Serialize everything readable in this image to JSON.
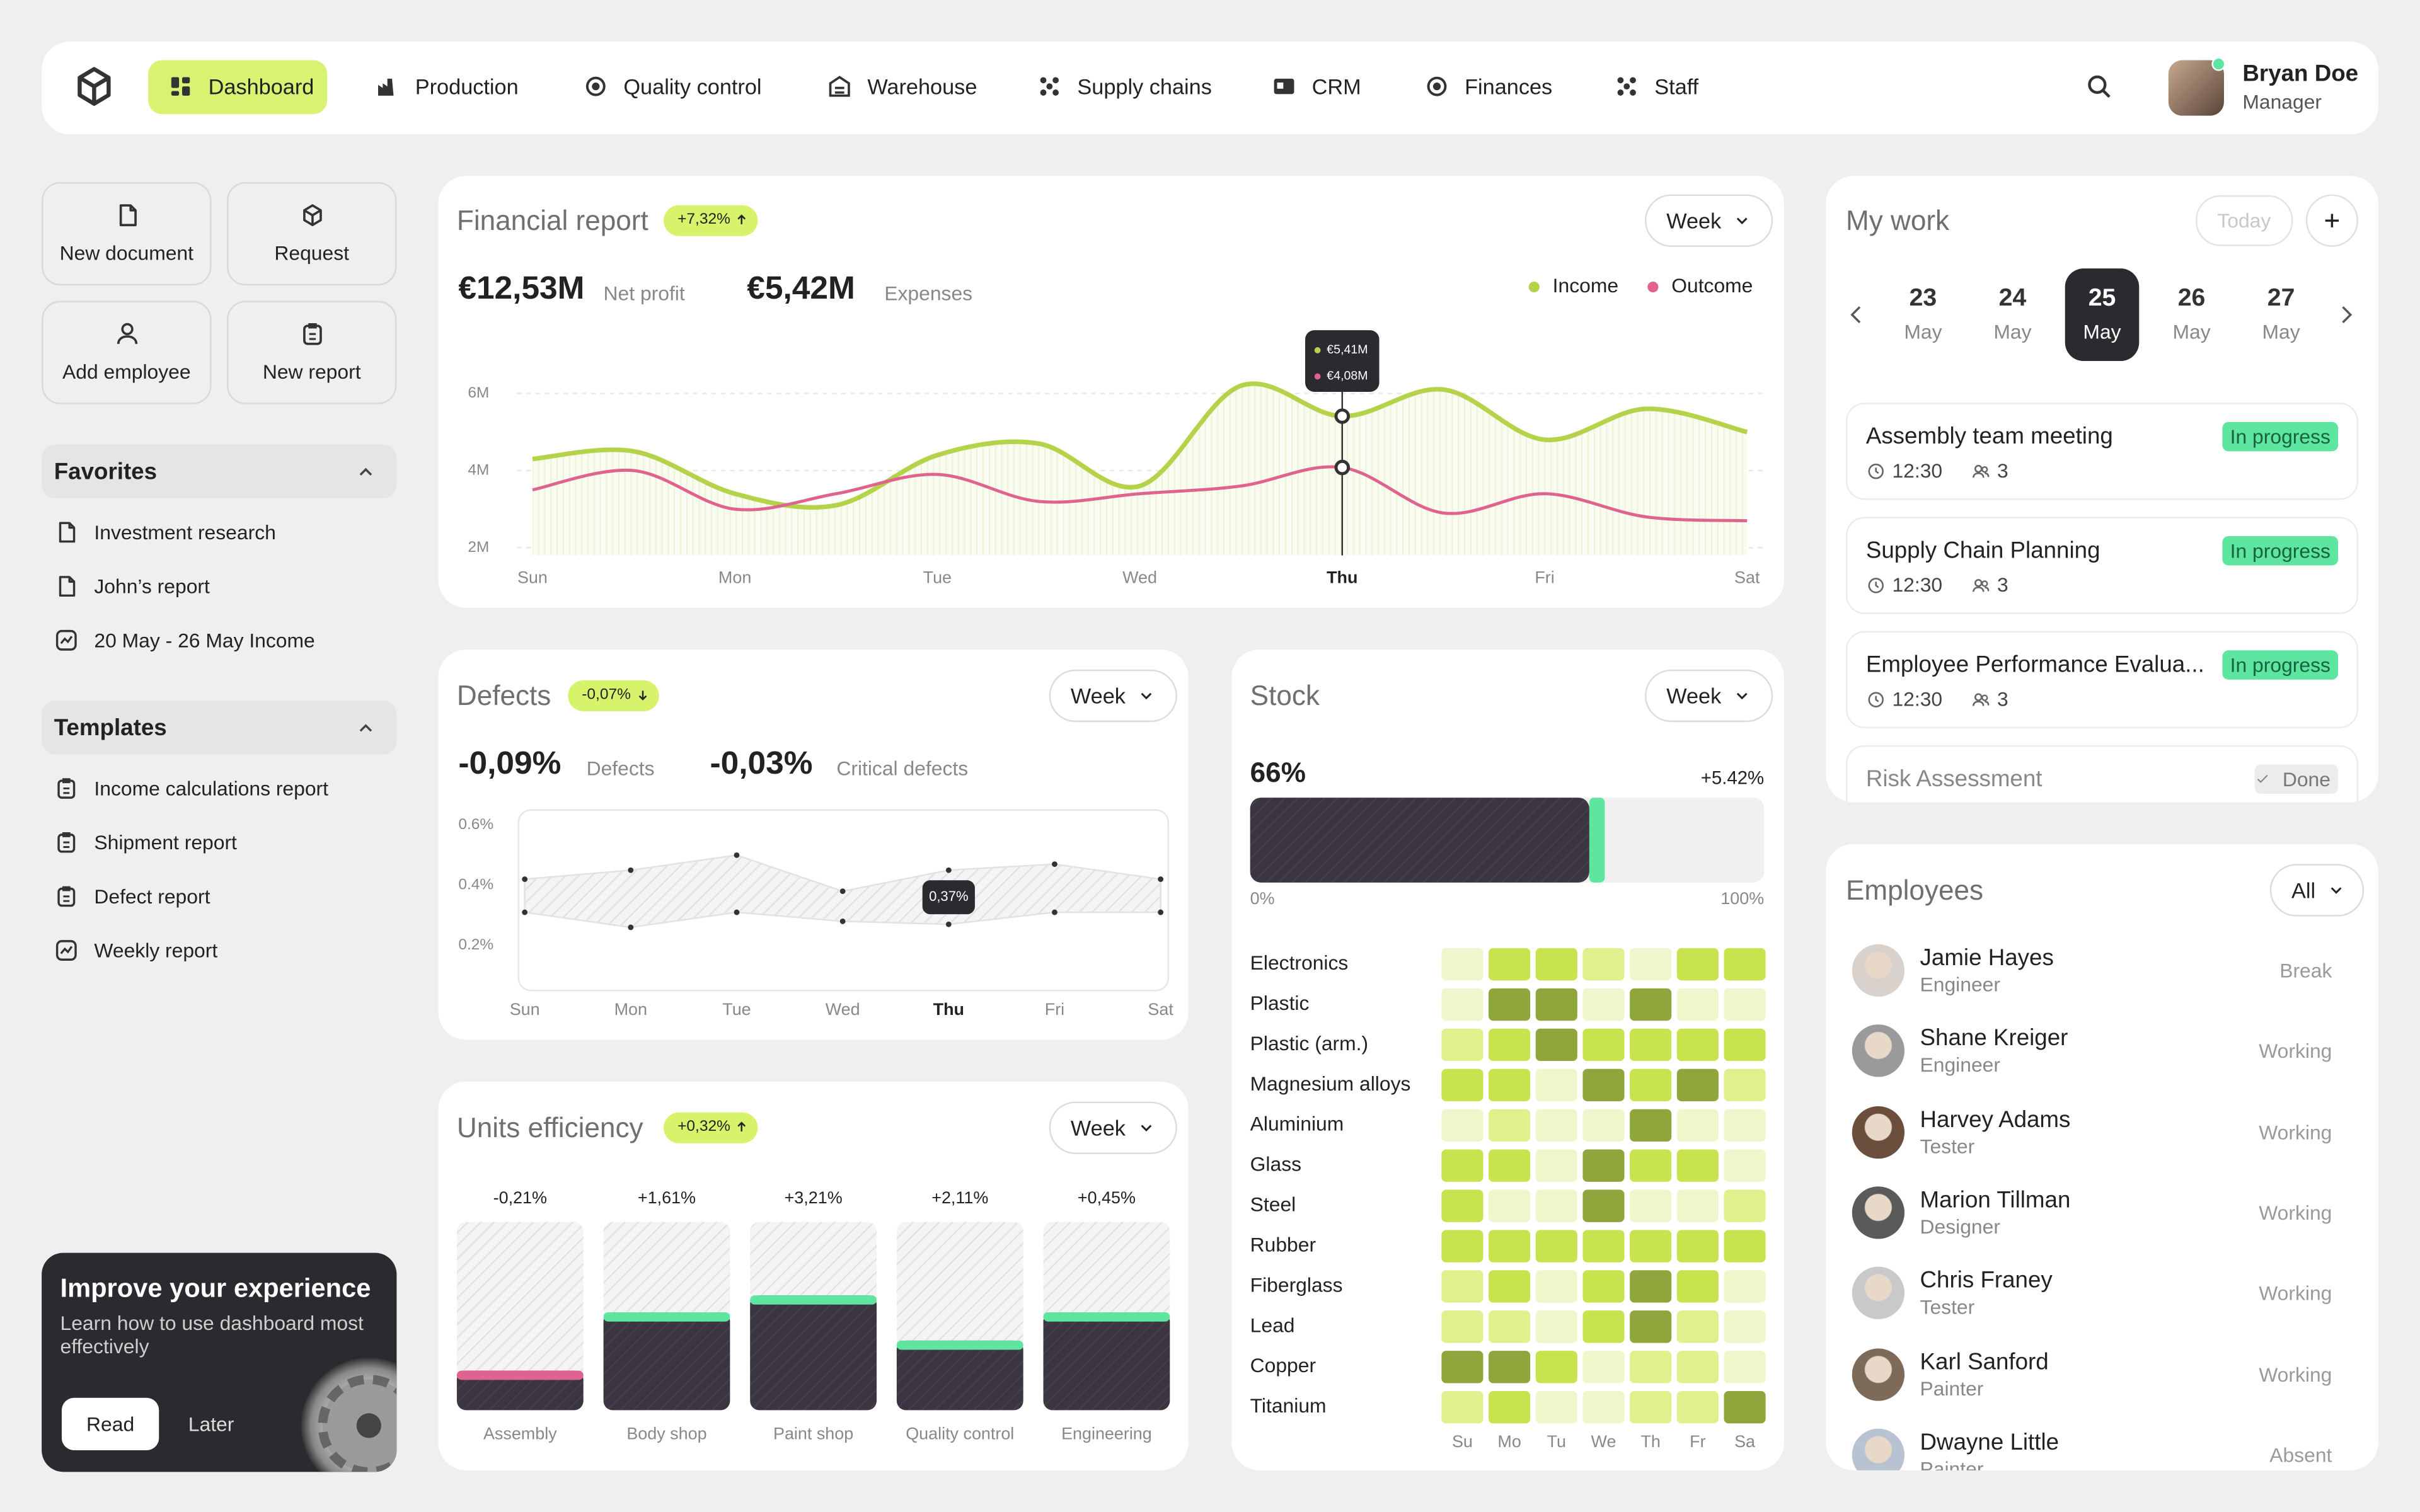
{
  "nav": {
    "items": [
      "Dashboard",
      "Production",
      "Quality control",
      "Warehouse",
      "Supply chains",
      "CRM",
      "Finances",
      "Staff"
    ]
  },
  "user": {
    "name": "Bryan Doe",
    "role": "Manager"
  },
  "quick_actions": [
    "New document",
    "Request",
    "Add employee",
    "New report"
  ],
  "favorites": {
    "title": "Favorites",
    "items": [
      "Investment research",
      "John’s report",
      "20 May - 26 May Income"
    ]
  },
  "templates": {
    "title": "Templates",
    "items": [
      "Income calculations report",
      "Shipment report",
      "Defect report",
      "Weekly report"
    ]
  },
  "promo": {
    "title": "Improve your experience",
    "text": "Learn how to use dashboard most effectively",
    "primary": "Read",
    "secondary": "Later"
  },
  "financial_report": {
    "title": "Financial report",
    "change": "+7,32%",
    "period": "Week",
    "net_profit": {
      "value": "€12,53M",
      "label": "Net profit"
    },
    "expenses": {
      "value": "€5,42M",
      "label": "Expenses"
    },
    "chart_data": {
      "type": "line",
      "categories": [
        "Sun",
        null,
        "Mon",
        null,
        "Tue",
        null,
        "Wed",
        null,
        "Thu",
        null,
        "Fri",
        null,
        "Sat"
      ],
      "series": [
        {
          "name": "Income",
          "color": "#b5d34a",
          "values": [
            4.3,
            4.5,
            3.4,
            3.1,
            4.4,
            4.7,
            3.6,
            6.2,
            5.41,
            6.1,
            4.8,
            5.6,
            5.0
          ],
          "value_labels": [
            null,
            null,
            null,
            null,
            null,
            null,
            null,
            null,
            "€5,41M",
            null,
            null,
            null,
            null
          ]
        },
        {
          "name": "Outcome",
          "color": "#e0628e",
          "values": [
            3.5,
            4.0,
            3.0,
            3.4,
            3.9,
            3.2,
            3.4,
            3.6,
            4.08,
            2.9,
            3.4,
            2.8,
            2.7
          ],
          "value_labels": [
            null,
            null,
            null,
            null,
            null,
            null,
            null,
            null,
            "€4,08M",
            null,
            null,
            null,
            null
          ]
        }
      ],
      "ylim": [
        1.8,
        6.6
      ],
      "yticks": [
        {
          "value": 2,
          "label": "2M"
        },
        {
          "value": 4,
          "label": "4M"
        },
        {
          "value": 6,
          "label": "6M"
        }
      ],
      "grid": true,
      "legend": "top-right"
    }
  },
  "defects": {
    "title": "Defects",
    "change": "-0,07%",
    "period": "Week",
    "defects": {
      "value": "-0,09%",
      "label": "Defects"
    },
    "critical": {
      "value": "-0,03%",
      "label": "Critical defects"
    },
    "tooltip": "0,37%",
    "chart_data": {
      "type": "band",
      "categories": [
        "Sun",
        "Mon",
        "Tue",
        "Wed",
        "Thu",
        "Fri",
        "Sat"
      ],
      "series": [
        {
          "color": "#9a9a9a",
          "values": [
            0.42,
            0.45,
            0.5,
            0.38,
            0.45,
            0.47,
            0.42
          ]
        },
        {
          "color": "#9a9a9a",
          "values": [
            0.31,
            0.26,
            0.31,
            0.28,
            0.27,
            0.31,
            0.31
          ]
        }
      ],
      "ylim": [
        0.05,
        0.65
      ],
      "yticks": [
        {
          "value": 0.6,
          "label": "0.6%"
        },
        {
          "value": 0.4,
          "label": "0.4%"
        },
        {
          "value": 0.2,
          "label": "0.2%"
        }
      ],
      "grid": false
    }
  },
  "stock": {
    "title": "Stock",
    "period": "Week",
    "change": "+5.42%",
    "chart_data": {
      "type": "bar",
      "orientation": "horizontal",
      "values": [
        66
      ],
      "value_labels": [
        "66%"
      ],
      "xlim": [
        0,
        100
      ],
      "xticks": [
        {
          "value": 0,
          "label": "0%"
        },
        {
          "value": 100,
          "label": "100%"
        }
      ],
      "color": "#3a3540",
      "accent": "#5ee6a0"
    },
    "heatmap": {
      "type": "heatmap",
      "rows": [
        "Electronics",
        "Plastic",
        "Plastic (arm.)",
        "Magnesium alloys",
        "Aluminium",
        "Glass",
        "Steel",
        "Rubber",
        "Fiberglass",
        "Lead",
        "Copper",
        "Titanium"
      ],
      "columns": [
        "Su",
        "Mo",
        "Tu",
        "We",
        "Th",
        "Fr",
        "Sa"
      ],
      "values": [
        [
          1,
          3,
          3,
          2,
          1,
          3,
          3
        ],
        [
          1,
          4,
          4,
          1,
          4,
          1,
          1
        ],
        [
          2,
          3,
          4,
          3,
          3,
          3,
          3
        ],
        [
          3,
          3,
          1,
          4,
          3,
          4,
          2
        ],
        [
          1,
          2,
          1,
          1,
          4,
          1,
          1
        ],
        [
          3,
          3,
          1,
          4,
          3,
          3,
          1
        ],
        [
          3,
          1,
          1,
          4,
          1,
          1,
          2
        ],
        [
          3,
          3,
          3,
          3,
          3,
          3,
          3
        ],
        [
          2,
          3,
          1,
          3,
          4,
          3,
          1
        ],
        [
          2,
          2,
          1,
          3,
          4,
          2,
          1
        ],
        [
          4,
          4,
          3,
          1,
          2,
          2,
          1
        ],
        [
          2,
          3,
          1,
          1,
          2,
          2,
          4
        ]
      ],
      "zlim": [
        1,
        4
      ],
      "colors": [
        "#eef6cc",
        "#e0f08c",
        "#c7e34e",
        "#8ea63c"
      ]
    }
  },
  "units_efficiency": {
    "title": "Units efficiency",
    "change": "+0,32%",
    "period": "Week",
    "chart_data": {
      "type": "bar",
      "categories": [
        "Assembly",
        "Body shop",
        "Paint shop",
        "Quality control",
        "Engineering"
      ],
      "values": [
        21,
        52,
        61,
        37,
        52
      ],
      "changes": [
        "-0,21%",
        "+1,61%",
        "+3,21%",
        "+2,11%",
        "+0,45%"
      ],
      "ylim": [
        0,
        100
      ],
      "color": "#3a3540",
      "accent_colors": [
        "#e0628e",
        "#5ee6a0",
        "#5ee6a0",
        "#5ee6a0",
        "#5ee6a0"
      ]
    }
  },
  "my_work": {
    "title": "My work",
    "today": "Today",
    "dates": [
      {
        "day": 23,
        "month": "May"
      },
      {
        "day": 24,
        "month": "May"
      },
      {
        "day": 25,
        "month": "May"
      },
      {
        "day": 26,
        "month": "May"
      },
      {
        "day": 27,
        "month": "May"
      }
    ],
    "tasks": [
      {
        "title": "Assembly team meeting",
        "status": "In progress",
        "time": "12:30",
        "people": 3
      },
      {
        "title": "Supply Chain Planning",
        "status": "In progress",
        "time": "12:30",
        "people": 3
      },
      {
        "title": "Employee Performance Evalua...",
        "status": "In progress",
        "time": "12:30",
        "people": 3
      },
      {
        "title": "Risk Assessment",
        "status": "Done"
      }
    ]
  },
  "employees": {
    "title": "Employees",
    "filter": "All",
    "list": [
      {
        "name": "Jamie Hayes",
        "role": "Engineer",
        "status": "Break"
      },
      {
        "name": "Shane Kreiger",
        "role": "Engineer",
        "status": "Working"
      },
      {
        "name": "Harvey Adams",
        "role": "Tester",
        "status": "Working"
      },
      {
        "name": "Marion Tillman",
        "role": "Designer",
        "status": "Working"
      },
      {
        "name": "Chris Franey",
        "role": "Tester",
        "status": "Working"
      },
      {
        "name": "Karl Sanford",
        "role": "Painter",
        "status": "Working"
      },
      {
        "name": "Dwayne Little",
        "role": "Painter",
        "status": "Absent"
      }
    ]
  }
}
